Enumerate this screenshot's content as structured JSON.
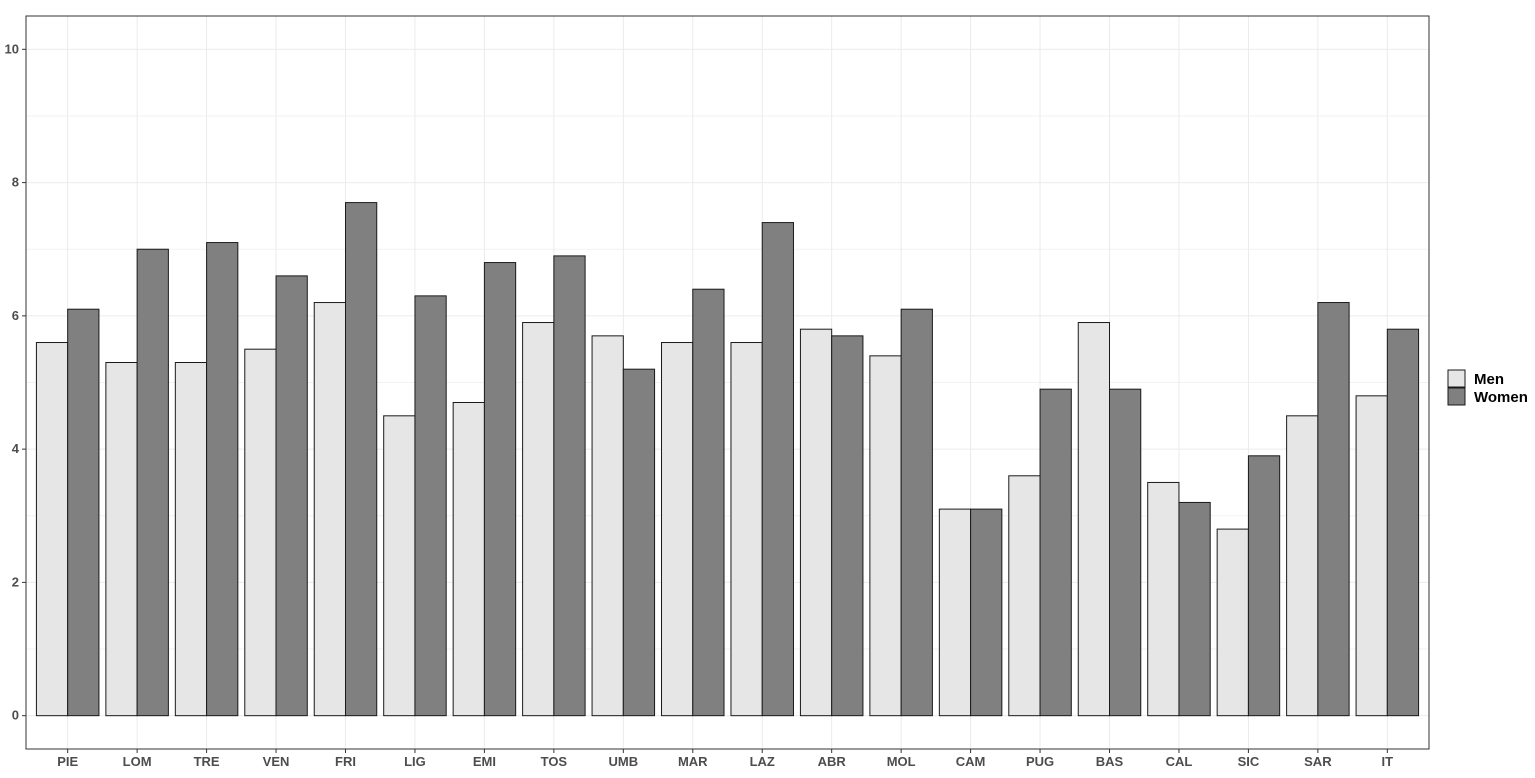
{
  "chart_data": {
    "type": "bar",
    "categories": [
      "PIE",
      "LOM",
      "TRE",
      "VEN",
      "FRI",
      "LIG",
      "EMI",
      "TOS",
      "UMB",
      "MAR",
      "LAZ",
      "ABR",
      "MOL",
      "CAM",
      "PUG",
      "BAS",
      "CAL",
      "SIC",
      "SAR",
      "IT"
    ],
    "series": [
      {
        "name": "Men",
        "color": "#e6e6e6",
        "values": [
          5.6,
          5.3,
          5.3,
          5.5,
          6.2,
          4.5,
          4.7,
          5.9,
          5.7,
          5.6,
          5.6,
          5.8,
          5.4,
          3.1,
          3.6,
          5.9,
          3.5,
          2.8,
          4.5,
          4.8
        ]
      },
      {
        "name": "Women",
        "color": "#808080",
        "values": [
          6.1,
          7.0,
          7.1,
          6.6,
          7.7,
          6.3,
          6.8,
          6.9,
          5.2,
          6.4,
          7.4,
          5.7,
          6.1,
          3.1,
          4.9,
          4.9,
          3.2,
          3.9,
          6.2,
          5.8
        ]
      }
    ],
    "yticks": [
      "0",
      "2",
      "4",
      "6",
      "8",
      "10"
    ],
    "ylim": [
      -0.5,
      10.5
    ],
    "grid": true,
    "legend": {
      "position": "right",
      "items": [
        "Men",
        "Women"
      ]
    },
    "title": "",
    "xlabel": "",
    "ylabel": ""
  }
}
